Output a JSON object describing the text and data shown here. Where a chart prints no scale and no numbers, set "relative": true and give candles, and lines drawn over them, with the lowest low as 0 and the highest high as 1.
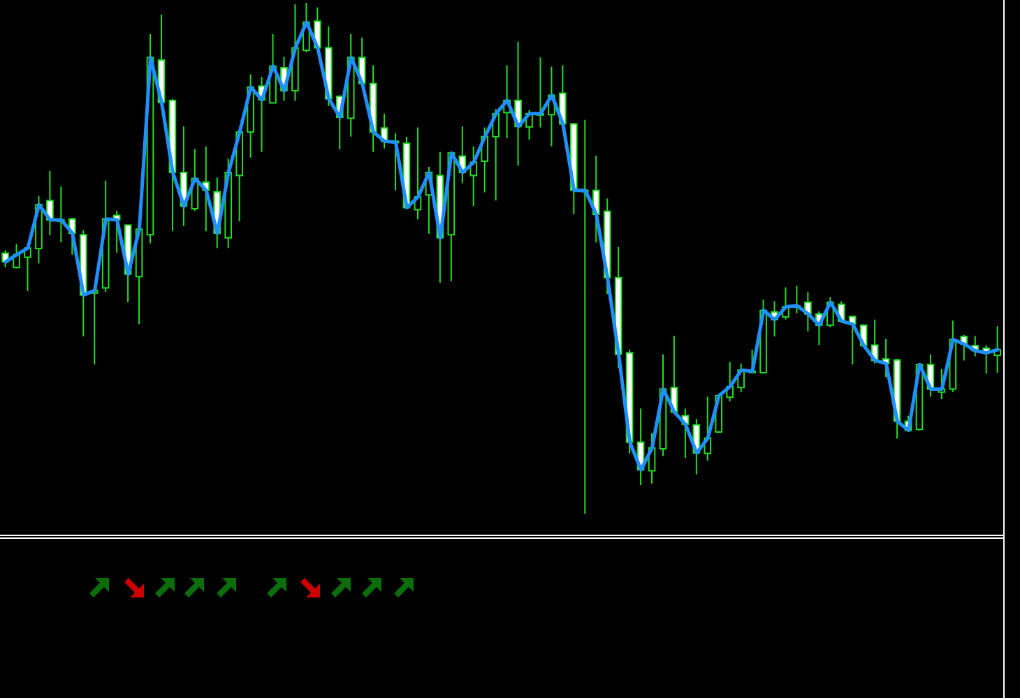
{
  "chart_data": {
    "type": "candlestick",
    "relative": true,
    "categories": [
      null,
      null,
      null,
      null,
      null,
      null,
      null,
      null,
      null,
      null,
      null,
      null,
      null,
      null,
      null,
      null,
      null,
      null,
      null,
      null,
      null,
      null,
      null,
      null,
      null,
      null,
      null,
      null,
      null,
      null,
      null,
      null,
      null,
      null,
      null,
      null,
      null,
      null,
      null,
      null,
      null,
      null,
      null,
      null,
      null,
      null,
      null,
      null,
      null,
      null,
      null,
      null,
      null,
      null,
      null,
      null,
      null,
      null,
      null,
      null,
      null,
      null,
      null,
      null,
      null,
      null,
      null,
      null,
      null,
      null,
      null,
      null,
      null,
      null,
      null,
      null,
      null,
      null,
      null,
      null,
      null,
      null,
      null,
      null,
      null,
      null,
      null,
      null,
      null,
      null
    ],
    "color": "#22dd22",
    "ohlc": [
      [
        0.51,
        0.516,
        0.482,
        0.493
      ],
      [
        0.482,
        0.528,
        0.48,
        0.507
      ],
      [
        0.502,
        0.522,
        0.436,
        0.52
      ],
      [
        0.519,
        0.622,
        0.49,
        0.605
      ],
      [
        0.613,
        0.671,
        0.545,
        0.575
      ],
      [
        0.575,
        0.641,
        0.531,
        0.575
      ],
      [
        0.577,
        0.579,
        0.507,
        0.549
      ],
      [
        0.546,
        0.555,
        0.347,
        0.428
      ],
      [
        0.432,
        0.439,
        0.292,
        0.437
      ],
      [
        0.442,
        0.652,
        0.434,
        0.577
      ],
      [
        0.584,
        0.593,
        0.511,
        0.575
      ],
      [
        0.565,
        0.566,
        0.414,
        0.469
      ],
      [
        0.464,
        0.558,
        0.371,
        0.557
      ],
      [
        0.546,
        0.939,
        0.529,
        0.893
      ],
      [
        0.888,
        0.977,
        0.803,
        0.805
      ],
      [
        0.809,
        0.812,
        0.553,
        0.668
      ],
      [
        0.668,
        0.758,
        0.563,
        0.602
      ],
      [
        0.597,
        0.714,
        0.593,
        0.656
      ],
      [
        0.649,
        0.719,
        0.553,
        0.633
      ],
      [
        0.63,
        0.658,
        0.52,
        0.549
      ],
      [
        0.54,
        0.695,
        0.52,
        0.668
      ],
      [
        0.662,
        0.748,
        0.572,
        0.747
      ],
      [
        0.747,
        0.86,
        0.697,
        0.835
      ],
      [
        0.837,
        0.855,
        0.708,
        0.81
      ],
      [
        0.804,
        0.939,
        0.804,
        0.876
      ],
      [
        0.873,
        0.894,
        0.808,
        0.828
      ],
      [
        0.828,
        0.997,
        0.808,
        0.912
      ],
      [
        0.907,
        1.0,
        0.903,
        0.962
      ],
      [
        0.964,
        0.991,
        0.91,
        0.912
      ],
      [
        0.912,
        0.954,
        0.798,
        0.812
      ],
      [
        0.817,
        0.819,
        0.713,
        0.776
      ],
      [
        0.774,
        0.939,
        0.738,
        0.893
      ],
      [
        0.893,
        0.932,
        0.84,
        0.842
      ],
      [
        0.842,
        0.878,
        0.708,
        0.747
      ],
      [
        0.755,
        0.783,
        0.715,
        0.729
      ],
      [
        0.729,
        0.745,
        0.633,
        0.727
      ],
      [
        0.725,
        0.738,
        0.597,
        0.599
      ],
      [
        0.595,
        0.756,
        0.576,
        0.62
      ],
      [
        0.624,
        0.679,
        0.548,
        0.668
      ],
      [
        0.662,
        0.708,
        0.452,
        0.54
      ],
      [
        0.546,
        0.708,
        0.455,
        0.706
      ],
      [
        0.7,
        0.758,
        0.647,
        0.668
      ],
      [
        0.662,
        0.719,
        0.602,
        0.688
      ],
      [
        0.69,
        0.756,
        0.629,
        0.738
      ],
      [
        0.738,
        0.792,
        0.613,
        0.783
      ],
      [
        0.785,
        0.878,
        0.735,
        0.809
      ],
      [
        0.809,
        0.924,
        0.681,
        0.758
      ],
      [
        0.757,
        0.79,
        0.732,
        0.783
      ],
      [
        0.783,
        0.893,
        0.756,
        0.783
      ],
      [
        0.781,
        0.875,
        0.719,
        0.819
      ],
      [
        0.823,
        0.878,
        0.761,
        0.763
      ],
      [
        0.763,
        0.765,
        0.586,
        0.633
      ],
      [
        0.633,
        0.771,
        0.0,
        0.633
      ],
      [
        0.633,
        0.701,
        0.531,
        0.586
      ],
      [
        0.592,
        0.617,
        0.43,
        0.462
      ],
      [
        0.462,
        0.522,
        0.285,
        0.312
      ],
      [
        0.315,
        0.321,
        0.118,
        0.14
      ],
      [
        0.14,
        0.206,
        0.056,
        0.086
      ],
      [
        0.084,
        0.158,
        0.059,
        0.129
      ],
      [
        0.127,
        0.312,
        0.113,
        0.244
      ],
      [
        0.247,
        0.348,
        0.195,
        0.199
      ],
      [
        0.192,
        0.206,
        0.109,
        0.175
      ],
      [
        0.174,
        0.186,
        0.077,
        0.119
      ],
      [
        0.118,
        0.229,
        0.104,
        0.148
      ],
      [
        0.16,
        0.235,
        0.158,
        0.231
      ],
      [
        0.228,
        0.297,
        0.22,
        0.249
      ],
      [
        0.247,
        0.294,
        0.238,
        0.281
      ],
      [
        0.279,
        0.321,
        0.276,
        0.279
      ],
      [
        0.276,
        0.419,
        0.276,
        0.398
      ],
      [
        0.395,
        0.416,
        0.347,
        0.38
      ],
      [
        0.385,
        0.443,
        0.38,
        0.405
      ],
      [
        0.407,
        0.446,
        0.392,
        0.407
      ],
      [
        0.414,
        0.434,
        0.357,
        0.391
      ],
      [
        0.391,
        0.396,
        0.33,
        0.369
      ],
      [
        0.369,
        0.424,
        0.365,
        0.414
      ],
      [
        0.41,
        0.416,
        0.374,
        0.377
      ],
      [
        0.386,
        0.388,
        0.292,
        0.371
      ],
      [
        0.369,
        0.371,
        0.326,
        0.329
      ],
      [
        0.33,
        0.38,
        0.294,
        0.3
      ],
      [
        0.303,
        0.342,
        0.267,
        0.294
      ],
      [
        0.301,
        0.303,
        0.147,
        0.181
      ],
      [
        0.181,
        0.192,
        0.163,
        0.163
      ],
      [
        0.165,
        0.294,
        0.163,
        0.292
      ],
      [
        0.292,
        0.312,
        0.229,
        0.244
      ],
      [
        0.238,
        0.283,
        0.224,
        0.244
      ],
      [
        0.244,
        0.378,
        0.238,
        0.341
      ],
      [
        0.347,
        0.35,
        0.3,
        0.332
      ],
      [
        0.329,
        0.348,
        0.308,
        0.319
      ],
      [
        0.324,
        0.33,
        0.274,
        0.315
      ],
      [
        0.31,
        0.367,
        0.276,
        0.321
      ]
    ],
    "colors": [
      "#ffffff",
      "#000000",
      "#000000",
      "#000000",
      "#ffffff",
      "#000000",
      "#ffffff",
      "#ffffff",
      "#000000",
      "#000000",
      "#ffffff",
      "#ffffff",
      "#000000",
      "#000000",
      "#ffffff",
      "#ffffff",
      "#ffffff",
      "#000000",
      "#ffffff",
      "#ffffff",
      "#000000",
      "#000000",
      "#000000",
      "#ffffff",
      "#000000",
      "#ffffff",
      "#000000",
      "#000000",
      "#ffffff",
      "#ffffff",
      "#ffffff",
      "#000000",
      "#ffffff",
      "#ffffff",
      "#ffffff",
      "#ffffff",
      "#ffffff",
      "#000000",
      "#000000",
      "#ffffff",
      "#000000",
      "#ffffff",
      "#000000",
      "#000000",
      "#000000",
      "#000000",
      "#ffffff",
      "#000000",
      "#000000",
      "#000000",
      "#ffffff",
      "#ffffff",
      "#000000",
      "#ffffff",
      "#ffffff",
      "#ffffff",
      "#ffffff",
      "#ffffff",
      "#000000",
      "#000000",
      "#ffffff",
      "#ffffff",
      "#ffffff",
      "#000000",
      "#000000",
      "#000000",
      "#000000",
      "#000000",
      "#000000",
      "#ffffff",
      "#000000",
      "#000000",
      "#ffffff",
      "#ffffff",
      "#000000",
      "#ffffff",
      "#ffffff",
      "#ffffff",
      "#ffffff",
      "#ffffff",
      "#ffffff",
      "#ffffff",
      "#000000",
      "#ffffff",
      "#000000",
      "#000000",
      "#ffffff",
      "#ffffff",
      "#ffffff",
      "#000000"
    ],
    "series": [
      {
        "type": "line",
        "color": "#1e90ff",
        "values": [
          0.493,
          0.507,
          0.52,
          0.605,
          0.575,
          0.575,
          0.549,
          0.428,
          0.437,
          0.577,
          0.575,
          0.469,
          0.557,
          0.893,
          0.805,
          0.668,
          0.602,
          0.656,
          0.633,
          0.549,
          0.668,
          0.747,
          0.835,
          0.81,
          0.876,
          0.828,
          0.912,
          0.962,
          0.912,
          0.812,
          0.776,
          0.893,
          0.842,
          0.747,
          0.729,
          0.727,
          0.599,
          0.62,
          0.668,
          0.54,
          0.706,
          0.668,
          0.688,
          0.738,
          0.783,
          0.809,
          0.758,
          0.783,
          0.783,
          0.819,
          0.763,
          0.633,
          0.633,
          0.586,
          0.462,
          0.312,
          0.14,
          0.086,
          0.129,
          0.244,
          0.199,
          0.175,
          0.119,
          0.148,
          0.231,
          0.249,
          0.281,
          0.279,
          0.398,
          0.38,
          0.405,
          0.407,
          0.391,
          0.369,
          0.414,
          0.377,
          0.371,
          0.329,
          0.3,
          0.294,
          0.181,
          0.163,
          0.292,
          0.244,
          0.244,
          0.341,
          0.332,
          0.319,
          0.315,
          0.321
        ]
      }
    ]
  }
}
